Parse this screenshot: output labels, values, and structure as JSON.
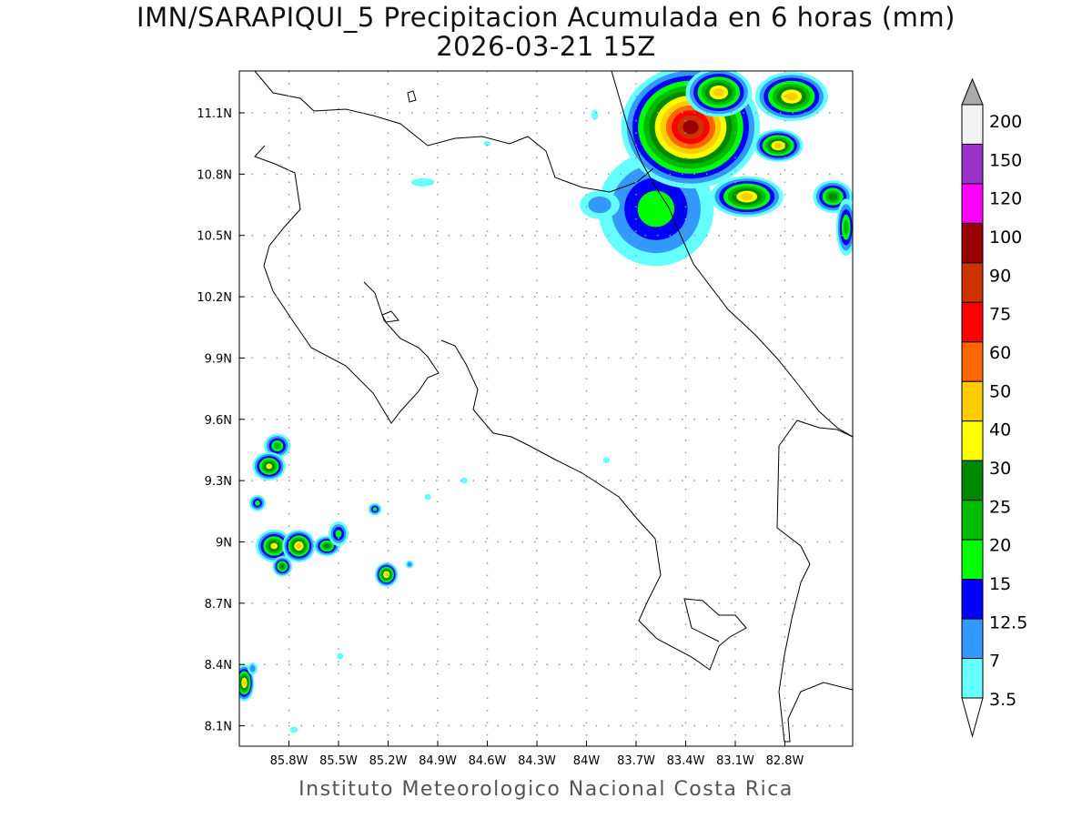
{
  "title": "IMN/SARAPIQUI_5 Precipitacion Acumulada en 6 horas (mm)",
  "subtitle": "2026-03-21 15Z",
  "footer": "Instituto Meteorologico Nacional Costa Rica",
  "map_data": {
    "lon_range": [
      -86.1,
      -82.39
    ],
    "lat_range": [
      8.0,
      11.305
    ],
    "lon_ticks": [
      {
        "value": -85.8,
        "label": "85.8W"
      },
      {
        "value": -85.5,
        "label": "85.5W"
      },
      {
        "value": -85.2,
        "label": "85.2W"
      },
      {
        "value": -84.9,
        "label": "84.9W"
      },
      {
        "value": -84.6,
        "label": "84.6W"
      },
      {
        "value": -84.3,
        "label": "84.3W"
      },
      {
        "value": -84.0,
        "label": "84W"
      },
      {
        "value": -83.7,
        "label": "83.7W"
      },
      {
        "value": -83.4,
        "label": "83.4W"
      },
      {
        "value": -83.1,
        "label": "83.1W"
      },
      {
        "value": -82.8,
        "label": "82.8W"
      }
    ],
    "lat_ticks": [
      {
        "value": 11.1,
        "label": "11.1N"
      },
      {
        "value": 10.8,
        "label": "10.8N"
      },
      {
        "value": 10.5,
        "label": "10.5N"
      },
      {
        "value": 10.2,
        "label": "10.2N"
      },
      {
        "value": 9.9,
        "label": "9.9N"
      },
      {
        "value": 9.6,
        "label": "9.6N"
      },
      {
        "value": 9.3,
        "label": "9.3N"
      },
      {
        "value": 9.0,
        "label": "9N"
      },
      {
        "value": 8.7,
        "label": "8.7N"
      },
      {
        "value": 8.4,
        "label": "8.4N"
      },
      {
        "value": 8.1,
        "label": "8.1N"
      }
    ],
    "precip_cells": [
      {
        "lon": -83.58,
        "lat": 10.63,
        "peak": 15,
        "rlon": 0.35,
        "rlat": 0.28
      },
      {
        "lon": -83.92,
        "lat": 10.65,
        "peak": 7,
        "rlon": 0.12,
        "rlat": 0.07
      },
      {
        "lon": -83.37,
        "lat": 11.03,
        "peak": 90,
        "rlon": 0.42,
        "rlat": 0.3
      },
      {
        "lon": -83.2,
        "lat": 11.2,
        "peak": 40,
        "rlon": 0.2,
        "rlat": 0.12
      },
      {
        "lon": -82.76,
        "lat": 11.18,
        "peak": 45,
        "rlon": 0.22,
        "rlat": 0.12
      },
      {
        "lon": -82.84,
        "lat": 10.94,
        "peak": 40,
        "rlon": 0.15,
        "rlat": 0.08
      },
      {
        "lon": -83.03,
        "lat": 10.69,
        "peak": 40,
        "rlon": 0.22,
        "rlat": 0.1
      },
      {
        "lon": -82.51,
        "lat": 10.69,
        "peak": 25,
        "rlon": 0.12,
        "rlat": 0.08
      },
      {
        "lon": -82.43,
        "lat": 10.54,
        "peak": 20,
        "rlon": 0.06,
        "rlat": 0.14
      },
      {
        "lon": -85.87,
        "lat": 9.47,
        "peak": 20,
        "rlon": 0.08,
        "rlat": 0.06
      },
      {
        "lon": -85.92,
        "lat": 9.37,
        "peak": 30,
        "rlon": 0.1,
        "rlat": 0.07
      },
      {
        "lon": -85.99,
        "lat": 9.19,
        "peak": 15,
        "rlon": 0.05,
        "rlat": 0.04
      },
      {
        "lon": -85.89,
        "lat": 8.98,
        "peak": 30,
        "rlon": 0.11,
        "rlat": 0.08
      },
      {
        "lon": -85.74,
        "lat": 8.98,
        "peak": 40,
        "rlon": 0.1,
        "rlat": 0.08
      },
      {
        "lon": -85.57,
        "lat": 8.98,
        "peak": 25,
        "rlon": 0.08,
        "rlat": 0.05
      },
      {
        "lon": -85.5,
        "lat": 9.04,
        "peak": 15,
        "rlon": 0.06,
        "rlat": 0.06
      },
      {
        "lon": -85.84,
        "lat": 8.88,
        "peak": 25,
        "rlon": 0.06,
        "rlat": 0.05
      },
      {
        "lon": -85.21,
        "lat": 8.84,
        "peak": 40,
        "rlon": 0.07,
        "rlat": 0.06
      },
      {
        "lon": -85.28,
        "lat": 9.16,
        "peak": 15,
        "rlon": 0.04,
        "rlat": 0.03
      },
      {
        "lon": -86.07,
        "lat": 8.31,
        "peak": 40,
        "rlon": 0.06,
        "rlat": 0.09
      },
      {
        "lon": -86.02,
        "lat": 8.38,
        "peak": 7,
        "rlon": 0.03,
        "rlat": 0.03
      },
      {
        "lon": -84.99,
        "lat": 10.76,
        "peak": 3.5,
        "rlon": 0.07,
        "rlat": 0.02
      },
      {
        "lon": -84.96,
        "lat": 9.22,
        "peak": 3.5,
        "rlon": 0.02,
        "rlat": 0.015
      },
      {
        "lon": -84.74,
        "lat": 9.3,
        "peak": 3.5,
        "rlon": 0.02,
        "rlat": 0.015
      },
      {
        "lon": -83.88,
        "lat": 9.4,
        "peak": 3.5,
        "rlon": 0.02,
        "rlat": 0.015
      },
      {
        "lon": -83.95,
        "lat": 11.09,
        "peak": 3.5,
        "rlon": 0.02,
        "rlat": 0.025
      },
      {
        "lon": -84.6,
        "lat": 10.95,
        "peak": 3.5,
        "rlon": 0.02,
        "rlat": 0.012
      },
      {
        "lon": -85.07,
        "lat": 8.89,
        "peak": 7,
        "rlon": 0.025,
        "rlat": 0.02
      },
      {
        "lon": -85.49,
        "lat": 8.44,
        "peak": 3.5,
        "rlon": 0.02,
        "rlat": 0.015
      },
      {
        "lon": -85.77,
        "lat": 8.08,
        "peak": 3.5,
        "rlon": 0.025,
        "rlat": 0.015
      }
    ]
  },
  "colorbar": {
    "labels": [
      "200",
      "150",
      "120",
      "100",
      "90",
      "75",
      "60",
      "50",
      "40",
      "30",
      "25",
      "20",
      "15",
      "12.5",
      "7",
      "3.5"
    ],
    "colors_top_to_bottom": [
      "#f2f2f2",
      "#9933cc",
      "#ff00ff",
      "#990000",
      "#cc3300",
      "#ff0000",
      "#ff6600",
      "#ffcc00",
      "#ffff00",
      "#008800",
      "#00bb00",
      "#00ff00",
      "#0000ff",
      "#3399ff",
      "#66ffff"
    ],
    "over_color": "#aaaaaa",
    "under_color": "#ffffff",
    "thresholds": [
      3.5,
      7,
      12.5,
      15,
      20,
      25,
      30,
      40,
      50,
      60,
      75,
      90,
      100,
      120,
      150
    ]
  }
}
